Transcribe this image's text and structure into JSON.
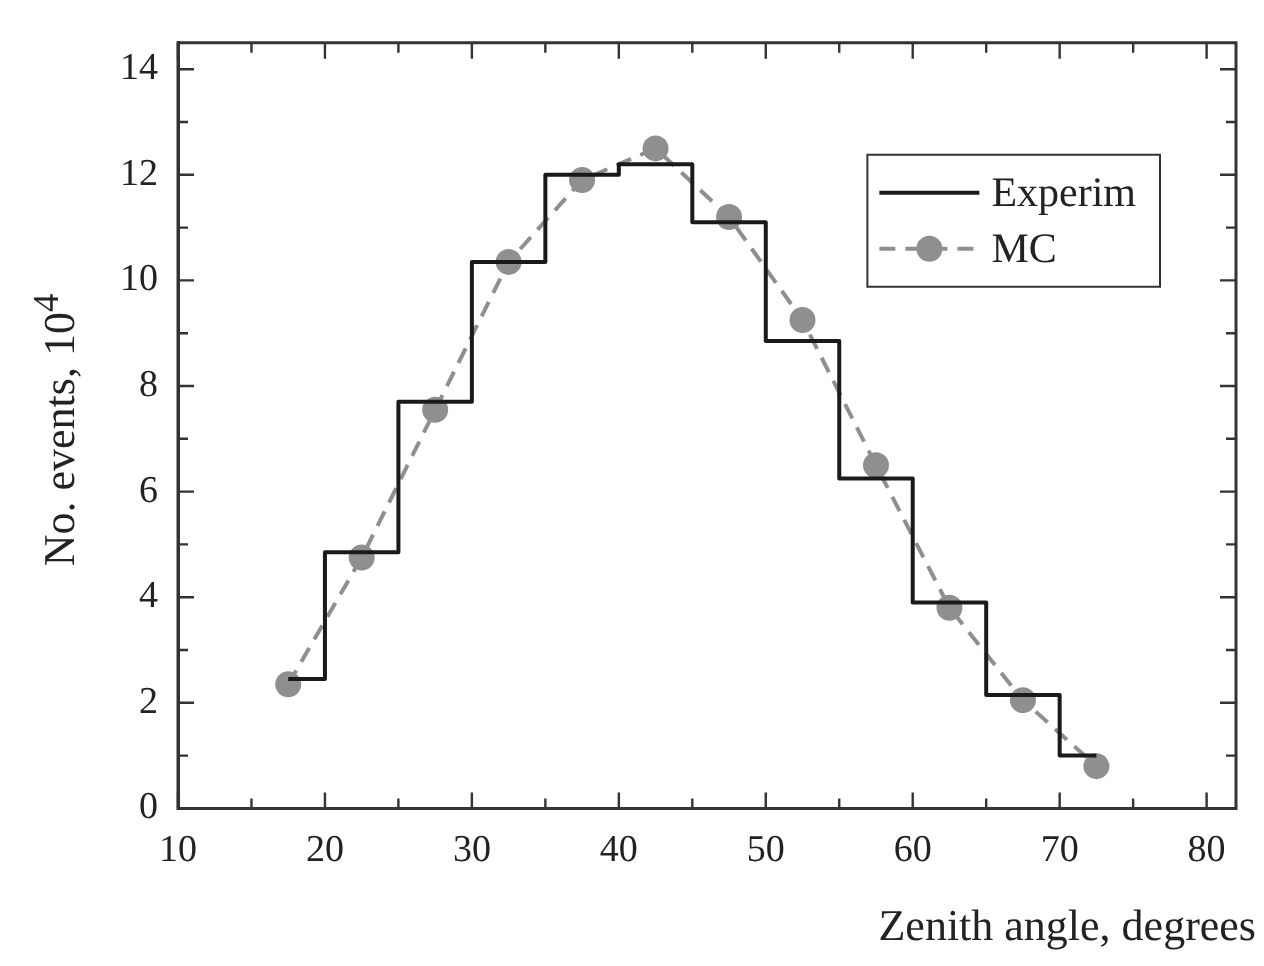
{
  "chart_data": {
    "type": "line",
    "xlabel": "Zenith angle, degrees",
    "ylabel": "No. events, 10$^{4}$",
    "xlim": [
      10,
      82
    ],
    "ylim": [
      0,
      14.5
    ],
    "xticks": [
      10,
      {
        "value": 15,
        "label": null
      },
      20,
      {
        "value": 25,
        "label": null
      },
      30,
      {
        "value": 35,
        "label": null
      },
      40,
      {
        "value": 45,
        "label": null
      },
      50,
      {
        "value": 55,
        "label": null
      },
      60,
      {
        "value": 65,
        "label": null
      },
      70,
      {
        "value": 75,
        "label": null
      },
      80
    ],
    "yticks": [
      0,
      {
        "value": 1,
        "label": null
      },
      2,
      {
        "value": 3,
        "label": null
      },
      4,
      {
        "value": 5,
        "label": null
      },
      6,
      {
        "value": 7,
        "label": null
      },
      8,
      {
        "value": 9,
        "label": null
      },
      10,
      {
        "value": 11,
        "label": null
      },
      12,
      {
        "value": 13,
        "label": null
      },
      14
    ],
    "grid": false,
    "legend": "top right",
    "series": [
      {
        "name": "Experim",
        "type": "step",
        "color": "#1a1a1a",
        "marker": "none",
        "line_style": "solid",
        "x": [
          17.5,
          20,
          25,
          30,
          35,
          40,
          45,
          50,
          55,
          60,
          65,
          70,
          72.5
        ],
        "values": [
          2.45,
          4.85,
          7.7,
          10.35,
          12.0,
          12.2,
          11.1,
          8.85,
          6.25,
          3.9,
          2.15,
          1.0,
          1.0
        ]
      },
      {
        "name": "MC",
        "type": "line",
        "color": "#8f8f8f",
        "marker": "circle",
        "line_style": "dashed",
        "x": [
          17.5,
          22.5,
          27.5,
          32.5,
          37.5,
          42.5,
          47.5,
          52.5,
          57.5,
          62.5,
          67.5,
          72.5
        ],
        "values": [
          2.35,
          4.75,
          7.55,
          10.35,
          11.9,
          12.5,
          11.2,
          9.25,
          6.5,
          3.8,
          2.05,
          0.8
        ]
      }
    ]
  }
}
